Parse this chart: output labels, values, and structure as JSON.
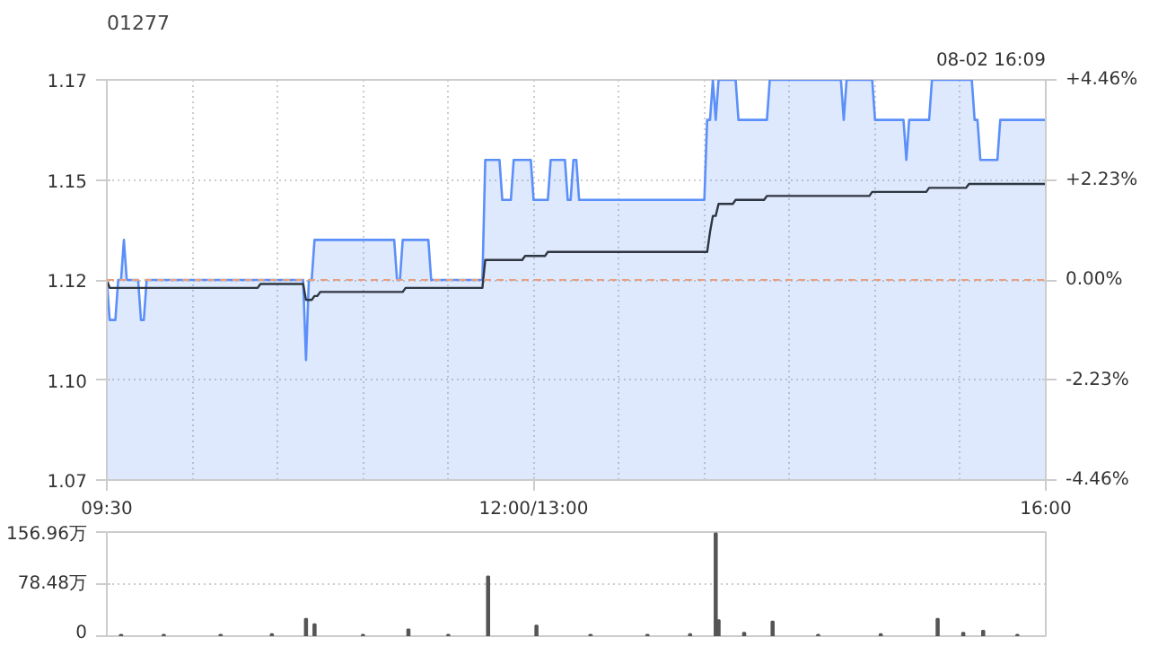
{
  "chart_data": [
    {
      "type": "area",
      "title": "01277",
      "annotations": [
        "08-02 16:09"
      ],
      "categories": [
        "09:30",
        null,
        null,
        null,
        null,
        null,
        null,
        null,
        null,
        null,
        null,
        null,
        null,
        null,
        null,
        null,
        null,
        null,
        null,
        null,
        null,
        null,
        null,
        null,
        null,
        null,
        null,
        null,
        null,
        null,
        null,
        null,
        null,
        null,
        null,
        null,
        null,
        null,
        null,
        null,
        null,
        null,
        null,
        null,
        null,
        null,
        null,
        null,
        null,
        null,
        null,
        null,
        null,
        null,
        null,
        null,
        null,
        null,
        null,
        null,
        null,
        null,
        null,
        null,
        null,
        null,
        null,
        null,
        null,
        null,
        null,
        null,
        null,
        null,
        null,
        null,
        null,
        null,
        null,
        null,
        null,
        null,
        null,
        null,
        null,
        null,
        null,
        null,
        null,
        null,
        null,
        null,
        null,
        null,
        null,
        null,
        null,
        null,
        null,
        null,
        null,
        null,
        null,
        null,
        null,
        null,
        null,
        null,
        null,
        null,
        null,
        null,
        null,
        null,
        null,
        null,
        null,
        null,
        null,
        null,
        null,
        null,
        null,
        null,
        null,
        null,
        null,
        null,
        null,
        null,
        null,
        null,
        null,
        null,
        null,
        null,
        null,
        null,
        null,
        null,
        null,
        null,
        null,
        null,
        null,
        null,
        null,
        null,
        null,
        null,
        "12:00/13:00",
        null,
        null,
        null,
        null,
        null,
        null,
        null,
        null,
        null,
        null,
        null,
        null,
        null,
        null,
        null,
        null,
        null,
        null,
        null,
        null,
        null,
        null,
        null,
        null,
        null,
        null,
        null,
        null,
        null,
        null,
        null,
        null,
        null,
        null,
        null,
        null,
        null,
        null,
        null,
        null,
        null,
        null,
        null,
        null,
        null,
        null,
        null,
        null,
        null,
        null,
        null,
        null,
        null,
        null,
        null,
        null,
        null,
        null,
        null,
        null,
        null,
        null,
        null,
        null,
        null,
        null,
        null,
        null,
        null,
        null,
        null,
        null,
        null,
        null,
        null,
        null,
        null,
        null,
        null,
        null,
        null,
        null,
        null,
        null,
        null,
        null,
        null,
        null,
        null,
        null,
        null,
        null,
        null,
        null,
        null,
        null,
        null,
        null,
        null,
        null,
        null,
        null,
        null,
        null,
        null,
        null,
        null,
        null,
        null,
        null,
        null,
        null,
        null,
        null,
        null,
        null,
        null,
        null,
        null,
        null,
        null,
        null,
        null,
        null,
        null,
        null,
        null,
        null,
        null,
        null,
        null,
        null,
        null,
        null,
        null,
        null,
        null,
        null,
        null,
        null,
        null,
        null,
        null,
        null,
        null,
        null,
        null,
        null,
        null,
        null,
        null,
        null,
        null,
        null,
        null,
        null,
        null,
        null,
        null,
        null,
        null,
        null,
        null,
        null,
        null,
        null,
        null,
        null,
        null,
        null,
        null,
        null,
        null,
        null,
        null,
        null,
        null,
        null,
        null,
        "16:00"
      ],
      "series": [
        {
          "type": "area",
          "color": "#5b8ff9",
          "values": [
            1.12,
            1.11,
            1.11,
            1.11,
            1.12,
            1.12,
            1.13,
            1.12,
            1.12,
            1.12,
            1.12,
            1.12,
            1.11,
            1.11,
            1.12,
            1.12,
            1.12,
            1.12,
            1.12,
            1.12,
            1.12,
            1.12,
            1.12,
            1.12,
            1.12,
            1.12,
            1.12,
            1.12,
            1.12,
            1.12,
            1.12,
            1.12,
            1.12,
            1.12,
            1.12,
            1.12,
            1.12,
            1.12,
            1.12,
            1.12,
            1.12,
            1.12,
            1.12,
            1.12,
            1.12,
            1.12,
            1.12,
            1.12,
            1.12,
            1.12,
            1.12,
            1.12,
            1.12,
            1.12,
            1.12,
            1.12,
            1.12,
            1.12,
            1.12,
            1.12,
            1.12,
            1.12,
            1.12,
            1.12,
            1.12,
            1.12,
            1.12,
            1.12,
            1.12,
            1.12,
            1.1,
            1.12,
            1.12,
            1.13,
            1.13,
            1.13,
            1.13,
            1.13,
            1.13,
            1.13,
            1.13,
            1.13,
            1.13,
            1.13,
            1.13,
            1.13,
            1.13,
            1.13,
            1.13,
            1.13,
            1.13,
            1.13,
            1.13,
            1.13,
            1.13,
            1.13,
            1.13,
            1.13,
            1.13,
            1.13,
            1.13,
            1.13,
            1.12,
            1.12,
            1.13,
            1.13,
            1.13,
            1.13,
            1.13,
            1.13,
            1.13,
            1.13,
            1.13,
            1.13,
            1.12,
            1.12,
            1.12,
            1.12,
            1.12,
            1.12,
            1.12,
            1.12,
            1.12,
            1.12,
            1.12,
            1.12,
            1.12,
            1.12,
            1.12,
            1.12,
            1.12,
            1.12,
            1.12,
            1.15,
            1.15,
            1.15,
            1.15,
            1.15,
            1.15,
            1.14,
            1.14,
            1.14,
            1.14,
            1.15,
            1.15,
            1.15,
            1.15,
            1.15,
            1.15,
            1.15,
            1.14,
            1.14,
            1.14,
            1.14,
            1.14,
            1.14,
            1.15,
            1.15,
            1.15,
            1.15,
            1.15,
            1.15,
            1.14,
            1.14,
            1.15,
            1.15,
            1.14,
            1.14,
            1.14,
            1.14,
            1.14,
            1.14,
            1.14,
            1.14,
            1.14,
            1.14,
            1.14,
            1.14,
            1.14,
            1.14,
            1.14,
            1.14,
            1.14,
            1.14,
            1.14,
            1.14,
            1.14,
            1.14,
            1.14,
            1.14,
            1.14,
            1.14,
            1.14,
            1.14,
            1.14,
            1.14,
            1.14,
            1.14,
            1.14,
            1.14,
            1.14,
            1.14,
            1.14,
            1.14,
            1.14,
            1.14,
            1.14,
            1.14,
            1.14,
            1.14,
            1.14,
            1.16,
            1.16,
            1.17,
            1.16,
            1.17,
            1.17,
            1.17,
            1.17,
            1.17,
            1.17,
            1.17,
            1.16,
            1.16,
            1.16,
            1.16,
            1.16,
            1.16,
            1.16,
            1.16,
            1.16,
            1.16,
            1.16,
            1.17,
            1.17,
            1.17,
            1.17,
            1.17,
            1.17,
            1.17,
            1.17,
            1.17,
            1.17,
            1.17,
            1.17,
            1.17,
            1.17,
            1.17,
            1.17,
            1.17,
            1.17,
            1.17,
            1.17,
            1.17,
            1.17,
            1.17,
            1.17,
            1.17,
            1.17,
            1.16,
            1.17,
            1.17,
            1.17,
            1.17,
            1.17,
            1.17,
            1.17,
            1.17,
            1.17,
            1.17,
            1.16,
            1.16,
            1.16,
            1.16,
            1.16,
            1.16,
            1.16,
            1.16,
            1.16,
            1.16,
            1.16,
            1.15,
            1.16,
            1.16,
            1.16,
            1.16,
            1.16,
            1.16,
            1.16,
            1.16,
            1.17,
            1.17,
            1.17,
            1.17,
            1.17,
            1.17,
            1.17,
            1.17,
            1.17,
            1.17,
            1.17,
            1.17,
            1.17,
            1.17,
            1.17,
            1.16,
            1.16,
            1.15,
            1.15,
            1.15,
            1.15,
            1.15,
            1.15,
            1.15,
            1.16,
            1.16,
            1.16,
            1.16,
            1.16,
            1.16,
            1.16,
            1.16,
            1.16,
            1.16,
            1.16,
            1.16,
            1.16,
            1.16,
            1.16,
            1.16,
            1.16
          ]
        },
        {
          "type": "line",
          "color": "#2e3640",
          "values": [
            1.12,
            1.118,
            1.118,
            1.118,
            1.118,
            1.118,
            1.118,
            1.118,
            1.118,
            1.118,
            1.118,
            1.118,
            1.118,
            1.118,
            1.118,
            1.118,
            1.118,
            1.118,
            1.118,
            1.118,
            1.118,
            1.118,
            1.118,
            1.118,
            1.118,
            1.118,
            1.118,
            1.118,
            1.118,
            1.118,
            1.118,
            1.118,
            1.118,
            1.118,
            1.118,
            1.118,
            1.118,
            1.118,
            1.118,
            1.118,
            1.118,
            1.118,
            1.118,
            1.118,
            1.118,
            1.118,
            1.118,
            1.118,
            1.118,
            1.118,
            1.118,
            1.118,
            1.118,
            1.118,
            1.119,
            1.119,
            1.119,
            1.119,
            1.119,
            1.119,
            1.119,
            1.119,
            1.119,
            1.119,
            1.119,
            1.119,
            1.119,
            1.119,
            1.119,
            1.119,
            1.115,
            1.115,
            1.115,
            1.116,
            1.116,
            1.117,
            1.117,
            1.117,
            1.117,
            1.117,
            1.117,
            1.117,
            1.117,
            1.117,
            1.117,
            1.117,
            1.117,
            1.117,
            1.117,
            1.117,
            1.117,
            1.117,
            1.117,
            1.117,
            1.117,
            1.117,
            1.117,
            1.117,
            1.117,
            1.117,
            1.117,
            1.117,
            1.117,
            1.117,
            1.117,
            1.118,
            1.118,
            1.118,
            1.118,
            1.118,
            1.118,
            1.118,
            1.118,
            1.118,
            1.118,
            1.118,
            1.118,
            1.118,
            1.118,
            1.118,
            1.118,
            1.118,
            1.118,
            1.118,
            1.118,
            1.118,
            1.118,
            1.118,
            1.118,
            1.118,
            1.118,
            1.118,
            1.118,
            1.125,
            1.125,
            1.125,
            1.125,
            1.125,
            1.125,
            1.125,
            1.125,
            1.125,
            1.125,
            1.125,
            1.125,
            1.125,
            1.125,
            1.126,
            1.126,
            1.126,
            1.126,
            1.126,
            1.126,
            1.126,
            1.126,
            1.127,
            1.127,
            1.127,
            1.127,
            1.127,
            1.127,
            1.127,
            1.127,
            1.127,
            1.127,
            1.127,
            1.127,
            1.127,
            1.127,
            1.127,
            1.127,
            1.127,
            1.127,
            1.127,
            1.127,
            1.127,
            1.127,
            1.127,
            1.127,
            1.127,
            1.127,
            1.127,
            1.127,
            1.127,
            1.127,
            1.127,
            1.127,
            1.127,
            1.127,
            1.127,
            1.127,
            1.127,
            1.127,
            1.127,
            1.127,
            1.127,
            1.127,
            1.127,
            1.127,
            1.127,
            1.127,
            1.127,
            1.127,
            1.127,
            1.127,
            1.127,
            1.127,
            1.127,
            1.127,
            1.127,
            1.127,
            1.127,
            1.132,
            1.136,
            1.136,
            1.139,
            1.139,
            1.139,
            1.139,
            1.139,
            1.139,
            1.14,
            1.14,
            1.14,
            1.14,
            1.14,
            1.14,
            1.14,
            1.14,
            1.14,
            1.14,
            1.14,
            1.141,
            1.141,
            1.141,
            1.141,
            1.141,
            1.141,
            1.141,
            1.141,
            1.141,
            1.141,
            1.141,
            1.141,
            1.141,
            1.141,
            1.141,
            1.141,
            1.141,
            1.141,
            1.141,
            1.141,
            1.141,
            1.141,
            1.141,
            1.141,
            1.141,
            1.141,
            1.141,
            1.141,
            1.141,
            1.141,
            1.141,
            1.141,
            1.141,
            1.141,
            1.141,
            1.141,
            1.141,
            1.142,
            1.142,
            1.142,
            1.142,
            1.142,
            1.142,
            1.142,
            1.142,
            1.142,
            1.142,
            1.142,
            1.142,
            1.142,
            1.142,
            1.142,
            1.142,
            1.142,
            1.142,
            1.142,
            1.142,
            1.143,
            1.143,
            1.143,
            1.143,
            1.143,
            1.143,
            1.143,
            1.143,
            1.143,
            1.143,
            1.143,
            1.143,
            1.143,
            1.143,
            1.144,
            1.144,
            1.144,
            1.144,
            1.144,
            1.144,
            1.144,
            1.144,
            1.144,
            1.144,
            1.144,
            1.144,
            1.144,
            1.144,
            1.144,
            1.144,
            1.144,
            1.144,
            1.144,
            1.144,
            1.144,
            1.144,
            1.144,
            1.144,
            1.144,
            1.144,
            1.144,
            1.144
          ]
        }
      ],
      "ylim": [
        1.07,
        1.17
      ],
      "yticks": [
        1.07,
        {
          "value": 1.095,
          "label": "1.10"
        },
        1.12,
        {
          "value": 1.145,
          "label": "1.15"
        },
        1.17
      ],
      "y2lim": [
        -4.46,
        4.46
      ],
      "y2ticks": [
        {
          "value": -4.46,
          "label": "-4.46%"
        },
        {
          "value": -2.23,
          "label": "-2.23%"
        },
        {
          "value": 0,
          "label": "0.00%"
        },
        {
          "value": 2.23,
          "label": "+2.23%"
        },
        {
          "value": 4.46,
          "label": "+4.46%"
        }
      ],
      "ref_lines": [
        {
          "axis": "y",
          "value": 1.12,
          "color": "#e8a080",
          "line_style": "dashed"
        }
      ],
      "grid": true
    },
    {
      "type": "bar",
      "color": "#555555",
      "categories": [
        null,
        null,
        null,
        null,
        null,
        null,
        null,
        null,
        null,
        null,
        null,
        null,
        null,
        null,
        null,
        null,
        null,
        null,
        null,
        null,
        null,
        null,
        null,
        null,
        null,
        null,
        null,
        null,
        null,
        null,
        null,
        null,
        null,
        null,
        null,
        null,
        null,
        null,
        null,
        null,
        null,
        null,
        null,
        null,
        null,
        null,
        null,
        null,
        null,
        null,
        null,
        null,
        null,
        null,
        null,
        null,
        null,
        null,
        null,
        null,
        null,
        null,
        null,
        null,
        null,
        null,
        null,
        null,
        null,
        null,
        null,
        null,
        null,
        null,
        null,
        null,
        null,
        null,
        null,
        null,
        null,
        null,
        null,
        null,
        null,
        null,
        null,
        null,
        null,
        null,
        null,
        null,
        null,
        null,
        null,
        null,
        null,
        null,
        null,
        null,
        null,
        null,
        null,
        null,
        null,
        null,
        null,
        null,
        null,
        null,
        null,
        null,
        null,
        null,
        null,
        null,
        null,
        null,
        null,
        null,
        null,
        null,
        null,
        null,
        null,
        null,
        null,
        null,
        null,
        null,
        null,
        null,
        null,
        null,
        null,
        null,
        null,
        null,
        null,
        null,
        null,
        null,
        null,
        null,
        null,
        null,
        null,
        null,
        null,
        null,
        null,
        null,
        null,
        null,
        null,
        null,
        null,
        null,
        null,
        null,
        null,
        null,
        null,
        null,
        null,
        null,
        null,
        null,
        null,
        null,
        null,
        null,
        null,
        null,
        null,
        null,
        null,
        null,
        null,
        null,
        null,
        null,
        null,
        null,
        null,
        null,
        null,
        null,
        null,
        null,
        null,
        null,
        null,
        null,
        null,
        null,
        null,
        null,
        null,
        null,
        null,
        null,
        null,
        null,
        null,
        null,
        null,
        null,
        null,
        null,
        null,
        null,
        null,
        null,
        null,
        null,
        null,
        null,
        null,
        null,
        null,
        null,
        null,
        null,
        null,
        null,
        null,
        null,
        null,
        null,
        null,
        null,
        null,
        null,
        null,
        null,
        null,
        null,
        null,
        null,
        null,
        null,
        null,
        null,
        null,
        null,
        null,
        null,
        null,
        null,
        null,
        null,
        null,
        null,
        null,
        null,
        null,
        null,
        null,
        null,
        null,
        null,
        null,
        null,
        null,
        null,
        null,
        null,
        null,
        null,
        null,
        null,
        null,
        null,
        null,
        null,
        null,
        null,
        null,
        null,
        null,
        null,
        null,
        null,
        null,
        null,
        null,
        null,
        null,
        null,
        null,
        null,
        null,
        null,
        null,
        null,
        null,
        null,
        null,
        null,
        null,
        null,
        null,
        null,
        null,
        null,
        null,
        null,
        null,
        null,
        null,
        null,
        null,
        null,
        null,
        null,
        null,
        null,
        null,
        null,
        null,
        null,
        null,
        null,
        null,
        null,
        null,
        null,
        null,
        null,
        null
      ],
      "values": [
        null,
        null,
        null,
        null,
        null,
        2,
        null,
        null,
        null,
        null,
        null,
        null,
        null,
        null,
        null,
        null,
        null,
        null,
        null,
        null,
        2,
        null,
        null,
        null,
        null,
        null,
        null,
        null,
        null,
        null,
        null,
        null,
        null,
        null,
        null,
        null,
        null,
        null,
        null,
        null,
        2,
        null,
        null,
        null,
        null,
        null,
        null,
        null,
        null,
        null,
        null,
        null,
        null,
        null,
        null,
        null,
        null,
        null,
        3,
        null,
        null,
        null,
        null,
        null,
        null,
        null,
        null,
        null,
        null,
        null,
        26,
        null,
        null,
        18,
        null,
        null,
        null,
        null,
        null,
        null,
        null,
        null,
        null,
        null,
        null,
        null,
        null,
        null,
        null,
        null,
        2,
        null,
        null,
        null,
        null,
        null,
        null,
        null,
        null,
        null,
        null,
        null,
        null,
        null,
        null,
        null,
        10,
        null,
        null,
        null,
        null,
        null,
        null,
        null,
        null,
        null,
        null,
        null,
        null,
        null,
        2,
        null,
        null,
        null,
        null,
        null,
        null,
        null,
        null,
        null,
        null,
        null,
        null,
        null,
        90,
        null,
        null,
        null,
        null,
        null,
        null,
        null,
        null,
        null,
        null,
        null,
        null,
        null,
        null,
        null,
        null,
        16,
        null,
        null,
        null,
        null,
        null,
        null,
        null,
        null,
        null,
        null,
        null,
        null,
        null,
        null,
        null,
        null,
        null,
        null,
        2,
        null,
        null,
        null,
        null,
        null,
        null,
        null,
        null,
        null,
        null,
        null,
        null,
        null,
        null,
        null,
        null,
        null,
        null,
        null,
        2,
        null,
        null,
        null,
        null,
        null,
        null,
        null,
        null,
        null,
        null,
        null,
        null,
        null,
        null,
        3,
        null,
        null,
        null,
        null,
        null,
        null,
        null,
        null,
        155,
        24,
        null,
        null,
        null,
        null,
        null,
        null,
        null,
        null,
        5,
        null,
        null,
        null,
        null,
        null,
        null,
        null,
        null,
        null,
        22,
        null,
        null,
        null,
        null,
        null,
        null,
        null,
        null,
        null,
        null,
        null,
        null,
        null,
        null,
        null,
        2,
        null,
        null,
        null,
        null,
        null,
        null,
        null,
        null,
        null,
        null,
        null,
        null,
        null,
        null,
        null,
        null,
        null,
        null,
        null,
        null,
        null,
        3,
        null,
        null,
        null,
        null,
        null,
        null,
        null,
        null,
        null,
        null,
        null,
        null,
        null,
        null,
        null,
        null,
        null,
        null,
        null,
        26,
        null,
        null,
        null,
        null,
        null,
        null,
        null,
        null,
        5,
        null,
        null,
        null,
        null,
        null,
        null,
        8,
        null,
        null,
        null,
        null,
        null,
        null,
        null,
        null,
        null,
        null,
        null,
        2,
        null,
        null,
        null,
        null,
        null,
        null,
        null,
        null,
        null,
        null
      ],
      "ylim": [
        0,
        156.96
      ],
      "yticks": [
        0,
        {
          "value": 78.48,
          "label": "78.48万"
        },
        {
          "value": 156.96,
          "label": "156.96万"
        }
      ],
      "tick_labels": "y",
      "grid": "y"
    }
  ]
}
